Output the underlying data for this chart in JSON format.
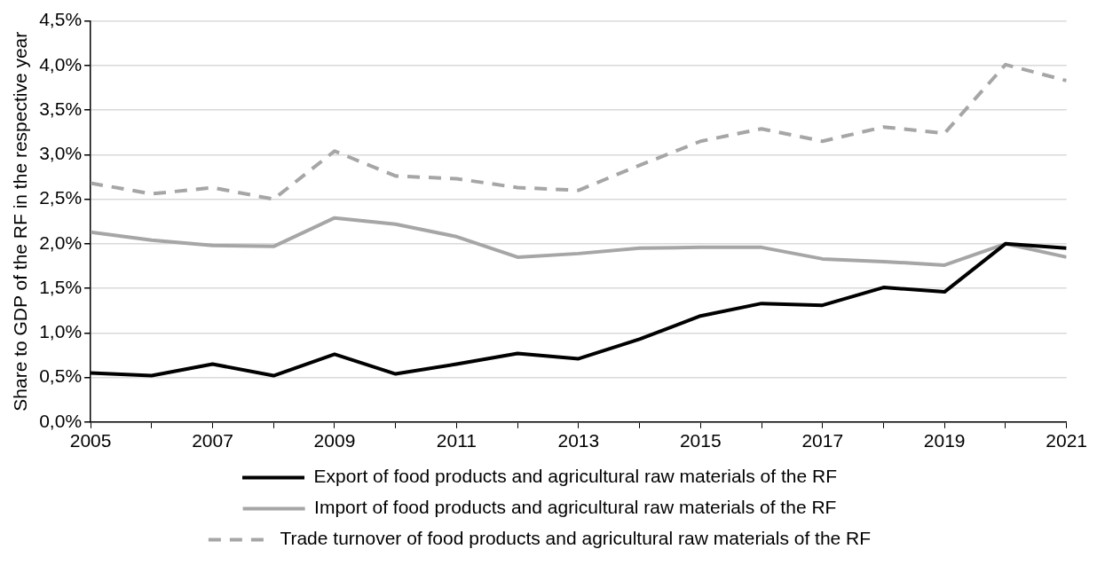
{
  "chart_data": {
    "type": "line",
    "ylabel": "Share to GDP of the RF in the respective year",
    "x": [
      2005,
      2006,
      2007,
      2008,
      2009,
      2010,
      2011,
      2012,
      2013,
      2014,
      2015,
      2016,
      2017,
      2018,
      2019,
      2020,
      2021
    ],
    "series": [
      {
        "name": "Export of food products and agricultural raw materials of the RF",
        "color": "#000000",
        "line_style": "solid",
        "values": [
          0.55,
          0.52,
          0.65,
          0.52,
          0.76,
          0.54,
          0.65,
          0.77,
          0.71,
          0.93,
          1.19,
          1.33,
          1.31,
          1.51,
          1.46,
          2.0,
          1.95
        ]
      },
      {
        "name": "Import of food products and agricultural raw materials of the RF",
        "color": "#a6a6a6",
        "line_style": "solid",
        "values": [
          2.13,
          2.04,
          1.98,
          1.97,
          2.29,
          2.22,
          2.08,
          1.85,
          1.89,
          1.95,
          1.96,
          1.96,
          1.83,
          1.8,
          1.76,
          2.0,
          1.85
        ]
      },
      {
        "name": "Trade turnover of food products and agricultural raw materials of the RF",
        "color": "#a6a6a6",
        "line_style": "dashed",
        "values": [
          2.68,
          2.56,
          2.63,
          2.5,
          3.04,
          2.76,
          2.73,
          2.63,
          2.6,
          2.88,
          3.15,
          3.29,
          3.15,
          3.31,
          3.24,
          4.01,
          3.83
        ]
      }
    ],
    "xlim": [
      2005,
      2021
    ],
    "xticks": [
      2005,
      {
        "value": 2006,
        "label": null
      },
      2007,
      {
        "value": 2008,
        "label": null
      },
      2009,
      {
        "value": 2010,
        "label": null
      },
      2011,
      {
        "value": 2012,
        "label": null
      },
      2013,
      {
        "value": 2014,
        "label": null
      },
      2015,
      {
        "value": 2016,
        "label": null
      },
      2017,
      {
        "value": 2018,
        "label": null
      },
      2019,
      {
        "value": 2020,
        "label": null
      },
      2021
    ],
    "ylim": [
      0,
      4.5
    ],
    "yticks": [
      {
        "value": 0,
        "label": "0,0%"
      },
      {
        "value": 0.5,
        "label": "0,5%"
      },
      {
        "value": 1,
        "label": "1,0%"
      },
      {
        "value": 1.5,
        "label": "1,5%"
      },
      {
        "value": 2,
        "label": "2,0%"
      },
      {
        "value": 2.5,
        "label": "2,5%"
      },
      {
        "value": 3,
        "label": "3,0%"
      },
      {
        "value": 3.5,
        "label": "3,5%"
      },
      {
        "value": 4,
        "label": "4,0%"
      },
      {
        "value": 4.5,
        "label": "4,5%"
      }
    ],
    "grid": "y",
    "legend": "bottom",
    "marker": "none"
  }
}
